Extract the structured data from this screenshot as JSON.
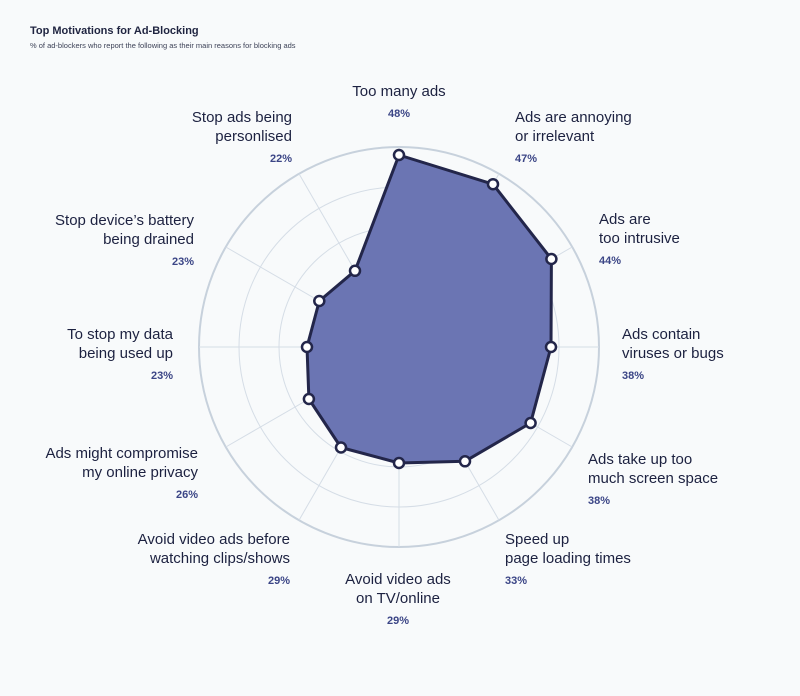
{
  "header": {
    "title": "Top Motivations for Ad-Blocking",
    "subtitle": "% of ad-blockers who report the following as their main reasons for blocking ads"
  },
  "colors": {
    "fill": "#6b75b3",
    "stroke": "#23264a",
    "grid": "#d5dde6",
    "outer_ring": "#c7d1dc",
    "value_text": "#3b4586"
  },
  "chart_data": {
    "type": "radar",
    "title": "Top Motivations for Ad-Blocking",
    "subtitle": "% of ad-blockers who report the following as their main reasons for blocking ads",
    "unit": "%",
    "range": [
      0,
      50
    ],
    "grid": true,
    "categories": [
      "Too many ads",
      "Ads are annoying\nor irrelevant",
      "Ads are\ntoo intrusive",
      "Ads contain\nviruses or bugs",
      "Ads take up too\nmuch screen space",
      "Speed up\npage loading times",
      "Avoid video ads\non TV/online",
      "Avoid video ads before\nwatching clips/shows",
      "Ads might compromise\nmy online privacy",
      "To stop my data\nbeing used up",
      "Stop device’s battery\nbeing drained",
      "Stop ads being\npersonlised"
    ],
    "values": [
      48,
      47,
      44,
      38,
      38,
      33,
      29,
      29,
      26,
      23,
      23,
      22
    ],
    "value_labels": [
      "48%",
      "47%",
      "44%",
      "38%",
      "38%",
      "33%",
      "29%",
      "29%",
      "26%",
      "23%",
      "23%",
      "22%"
    ]
  }
}
